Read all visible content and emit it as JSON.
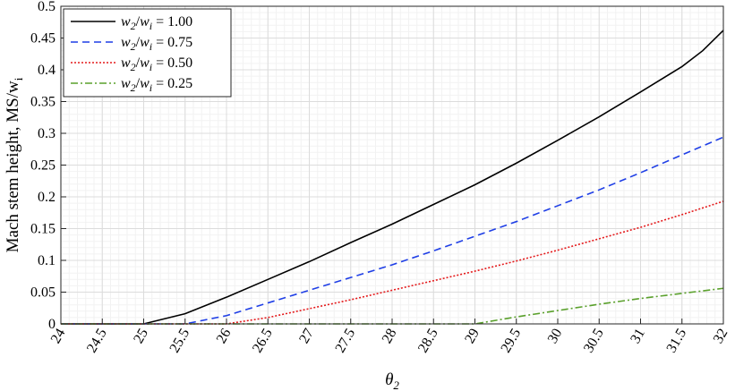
{
  "chart_data": {
    "type": "line",
    "xlabel": "θ",
    "xlabel_sub": "2",
    "ylabel": "Mach stem height, MS/w",
    "ylabel_sub": "i",
    "xlim": [
      24,
      32
    ],
    "ylim": [
      0,
      0.5
    ],
    "x_ticks": [
      "24",
      "24.5",
      "25",
      "25.5",
      "26",
      "26.5",
      "27",
      "27.5",
      "28",
      "28.5",
      "29",
      "29.5",
      "30",
      "30.5",
      "31",
      "31.5",
      "32"
    ],
    "y_ticks": [
      "0",
      "0.05",
      "0.1",
      "0.15",
      "0.2",
      "0.25",
      "0.3",
      "0.35",
      "0.4",
      "0.45",
      "0.5"
    ],
    "grid": true,
    "minor_grid": true,
    "legend_position": "top-left",
    "series": [
      {
        "name": "w2/wi = 1.00",
        "color": "#000000",
        "dash": "solid",
        "x": [
          24,
          25,
          25.5,
          26,
          26.5,
          27,
          27.5,
          28,
          28.5,
          29,
          29.5,
          30,
          30.5,
          31,
          31.5,
          31.75,
          32
        ],
        "y": [
          0,
          0,
          0.016,
          0.042,
          0.07,
          0.098,
          0.128,
          0.157,
          0.188,
          0.219,
          0.253,
          0.289,
          0.326,
          0.365,
          0.405,
          0.43,
          0.462
        ]
      },
      {
        "name": "w2/wi = 0.75",
        "color": "#1f3fe6",
        "dash": "dashed",
        "x": [
          24,
          25.5,
          26,
          26.5,
          27,
          27.5,
          28,
          28.5,
          29,
          29.5,
          30,
          30.5,
          31,
          31.5,
          32
        ],
        "y": [
          0,
          0,
          0.013,
          0.033,
          0.053,
          0.073,
          0.093,
          0.115,
          0.138,
          0.161,
          0.186,
          0.211,
          0.238,
          0.266,
          0.294
        ]
      },
      {
        "name": "w2/wi = 0.50",
        "color": "#e41a1c",
        "dash": "dotted",
        "x": [
          24,
          26,
          26.5,
          27,
          27.5,
          28,
          28.5,
          29,
          29.5,
          30,
          30.5,
          31,
          31.5,
          32
        ],
        "y": [
          0,
          0,
          0.01,
          0.024,
          0.038,
          0.053,
          0.068,
          0.083,
          0.099,
          0.116,
          0.134,
          0.152,
          0.172,
          0.193
        ]
      },
      {
        "name": "w2/wi = 0.25",
        "color": "#5aa02c",
        "dash": "dashdot",
        "x": [
          24,
          29,
          29.5,
          30,
          30.5,
          31,
          31.5,
          32
        ],
        "y": [
          0,
          0,
          0.011,
          0.021,
          0.031,
          0.04,
          0.048,
          0.056
        ]
      }
    ],
    "legend": [
      {
        "var": "w",
        "sub": "2",
        "div": "/",
        "var2": "w",
        "sub2": "i",
        "value": " = 1.00"
      },
      {
        "var": "w",
        "sub": "2",
        "div": "/",
        "var2": "w",
        "sub2": "i",
        "value": " = 0.75"
      },
      {
        "var": "w",
        "sub": "2",
        "div": "/",
        "var2": "w",
        "sub2": "i",
        "value": " = 0.50"
      },
      {
        "var": "w",
        "sub": "2",
        "div": "/",
        "var2": "w",
        "sub2": "i",
        "value": " = 0.25"
      }
    ]
  }
}
